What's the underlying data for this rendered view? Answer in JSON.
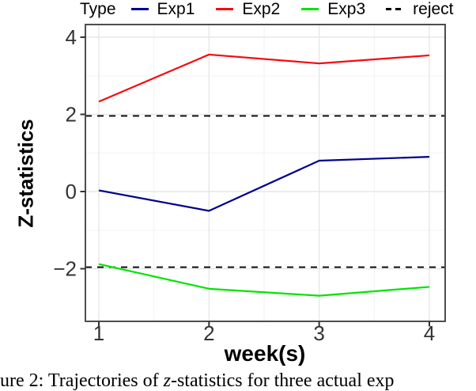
{
  "legend": {
    "title": "Type",
    "items": [
      {
        "label": "Exp1",
        "color": "#00008B",
        "style": "solid"
      },
      {
        "label": "Exp2",
        "color": "#F50A10",
        "style": "solid"
      },
      {
        "label": "Exp3",
        "color": "#00E500",
        "style": "solid"
      },
      {
        "label": "reject",
        "color": "#000000",
        "style": "dashed"
      }
    ]
  },
  "chart_data": {
    "type": "line",
    "x": [
      1,
      2,
      3,
      4
    ],
    "series": [
      {
        "name": "Exp1",
        "color": "#00008B",
        "values": [
          0.03,
          -0.5,
          0.8,
          0.9
        ]
      },
      {
        "name": "Exp2",
        "color": "#F50A10",
        "values": [
          2.33,
          3.55,
          3.32,
          3.53
        ]
      },
      {
        "name": "Exp3",
        "color": "#00E500",
        "values": [
          -1.88,
          -2.52,
          -2.7,
          -2.47
        ]
      }
    ],
    "reject_lines": [
      1.96,
      -1.96
    ],
    "reject_color": "#000000",
    "xlabel": "week(s)",
    "ylabel": "Z-statistics",
    "xticks": [
      1,
      2,
      3,
      4
    ],
    "xtick_labels": [
      "1",
      "2",
      "3",
      "4"
    ],
    "yticks": [
      4,
      2,
      0,
      -2
    ],
    "ytick_labels": [
      "4",
      "2",
      "0",
      "−2"
    ],
    "xlim": [
      0.88,
      4.14
    ],
    "ylim": [
      -3.36,
      4.33
    ],
    "grid": true,
    "legend_position": "top"
  },
  "caption": {
    "prefix": "ure 2: Trajectories of ",
    "italic": "z",
    "suffix": "-statistics for three actual exp"
  }
}
